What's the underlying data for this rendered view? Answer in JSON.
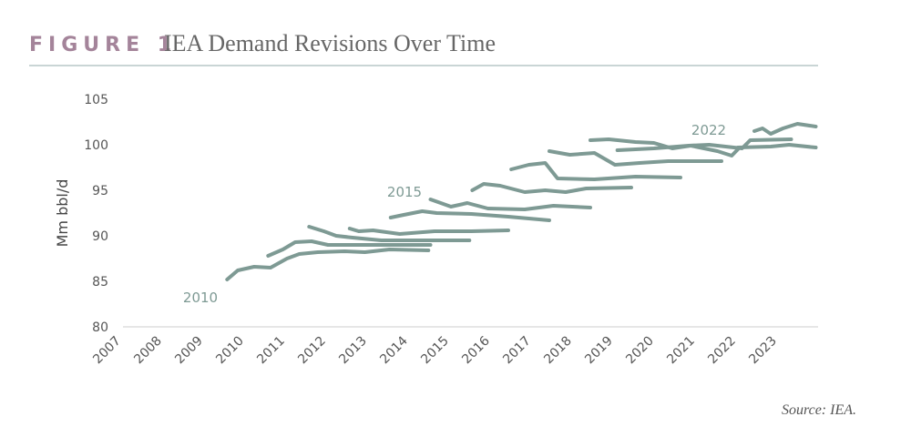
{
  "chart_data": {
    "type": "line",
    "figure_label": "FIGURE 1",
    "title": "IEA Demand Revisions Over Time",
    "y_label": "Mm bbl/d",
    "source": "Source: IEA.",
    "annotations": [
      "2010",
      "2015",
      "2022"
    ],
    "xlim": [
      2007,
      2024
    ],
    "xticks": [
      2007,
      2008,
      2009,
      2010,
      2011,
      2012,
      2013,
      2014,
      2015,
      2016,
      2017,
      2018,
      2019,
      2020,
      2021,
      2022,
      2023
    ],
    "ylim": [
      80,
      105
    ],
    "yticks": [
      80,
      85,
      90,
      95,
      100,
      105
    ],
    "series": [
      {
        "color": "#7e9a94",
        "x": [
          2009.54,
          2009.8,
          2010.2,
          2010.6,
          2011.0,
          2011.3,
          2011.75,
          2012.4,
          2012.9,
          2013.5,
          2014.45
        ],
        "values": [
          85.2,
          86.2,
          86.6,
          86.5,
          87.5,
          88.0,
          88.2,
          88.3,
          88.2,
          88.5,
          88.4
        ]
      },
      {
        "color": "#7e9a94",
        "x": [
          2010.54,
          2010.9,
          2011.2,
          2011.6,
          2012.0,
          2012.9,
          2013.5,
          2014.5
        ],
        "values": [
          87.8,
          88.5,
          89.3,
          89.4,
          89.0,
          89.0,
          89.0,
          89.0
        ]
      },
      {
        "color": "#7e9a94",
        "x": [
          2011.54,
          2011.9,
          2012.2,
          2012.6,
          2013.3,
          2014.2,
          2015.45
        ],
        "values": [
          91.0,
          90.5,
          90.0,
          89.8,
          89.5,
          89.5,
          89.5
        ]
      },
      {
        "color": "#7e9a94",
        "x": [
          2012.53,
          2012.75,
          2013.1,
          2013.75,
          2014.6,
          2015.5,
          2016.4
        ],
        "values": [
          90.8,
          90.5,
          90.6,
          90.2,
          90.5,
          90.5,
          90.6
        ]
      },
      {
        "color": "#7e9a94",
        "x": [
          2013.53,
          2013.85,
          2014.3,
          2014.65,
          2015.5,
          2016.4,
          2017.4
        ],
        "values": [
          92.0,
          92.3,
          92.7,
          92.5,
          92.4,
          92.1,
          91.7
        ]
      },
      {
        "color": "#7e9a94",
        "x": [
          2014.5,
          2014.75,
          2015.0,
          2015.4,
          2015.9,
          2016.8,
          2017.5,
          2018.4
        ],
        "values": [
          94.0,
          93.6,
          93.2,
          93.6,
          93.0,
          92.9,
          93.3,
          93.1
        ]
      },
      {
        "color": "#7e9a94",
        "x": [
          2015.52,
          2015.8,
          2016.2,
          2016.8,
          2017.3,
          2017.8,
          2018.3,
          2019.4
        ],
        "values": [
          95.0,
          95.7,
          95.5,
          94.8,
          95.0,
          94.8,
          95.2,
          95.3
        ]
      },
      {
        "color": "#7e9a94",
        "x": [
          2016.47,
          2016.9,
          2017.3,
          2017.6,
          2018.5,
          2019.5,
          2020.6
        ],
        "values": [
          97.3,
          97.8,
          98.0,
          96.3,
          96.2,
          96.5,
          96.4
        ]
      },
      {
        "color": "#7e9a94",
        "x": [
          2017.4,
          2017.9,
          2018.5,
          2019.0,
          2019.6,
          2020.3,
          2021.6
        ],
        "values": [
          99.3,
          98.9,
          99.1,
          97.8,
          98.0,
          98.2,
          98.2
        ]
      },
      {
        "color": "#7e9a94",
        "x": [
          2018.4,
          2018.85,
          2019.5,
          2019.95,
          2020.4,
          2020.85,
          2021.5,
          2021.85,
          2022.0
        ],
        "values": [
          100.5,
          100.6,
          100.3,
          100.2,
          99.6,
          99.9,
          99.3,
          98.8,
          99.5
        ]
      },
      {
        "color": "#7e9a94",
        "x": [
          2019.06,
          2019.95,
          2020.8,
          2021.3,
          2022.1,
          2022.3,
          2023.3
        ],
        "values": [
          99.4,
          99.6,
          99.9,
          100.0,
          99.6,
          100.5,
          100.6
        ]
      },
      {
        "color": "#7e9a94",
        "x": [
          2022.4,
          2022.6,
          2022.8,
          2023.1,
          2023.45,
          2023.9
        ],
        "values": [
          101.5,
          101.8,
          101.2,
          101.8,
          102.3,
          102.0
        ]
      },
      {
        "color": "#7e9a94",
        "x": [
          2022.0,
          2022.8,
          2023.25,
          2023.9
        ],
        "values": [
          99.7,
          99.8,
          100.0,
          99.7
        ]
      }
    ]
  }
}
